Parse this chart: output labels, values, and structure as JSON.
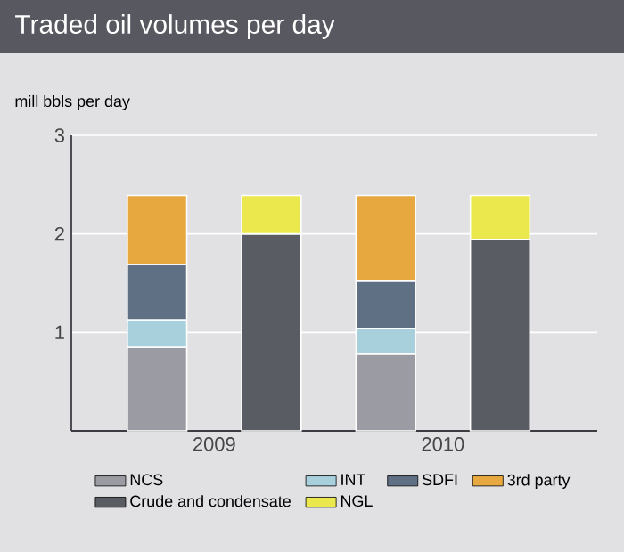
{
  "chart_data": {
    "type": "bar",
    "stacked": true,
    "title": "Traded oil volumes per day",
    "ylabel": "mill bbls per day",
    "categories": [
      "2009",
      null,
      "2010",
      null
    ],
    "series": [
      {
        "name": "NCS",
        "color": "#9b9ba3",
        "values": [
          0.85,
          null,
          0.78,
          null
        ]
      },
      {
        "name": "INT",
        "color": "#a7d0dc",
        "values": [
          0.28,
          null,
          0.26,
          null
        ]
      },
      {
        "name": "SDFI",
        "color": "#5f6f84",
        "values": [
          0.56,
          null,
          0.48,
          null
        ]
      },
      {
        "name": "3rd party",
        "color": "#e7a83f",
        "values": [
          0.7,
          null,
          0.87,
          null
        ]
      },
      {
        "name": "Crude and condensate",
        "color": "#5a5c64",
        "values": [
          null,
          2.0,
          null,
          1.94
        ]
      },
      {
        "name": "NGL",
        "color": "#ebe84e",
        "values": [
          null,
          0.39,
          null,
          0.45
        ]
      }
    ],
    "ylim": [
      0,
      3
    ],
    "yticks": [
      1,
      2,
      3
    ],
    "grid": "y",
    "legend": "bottom"
  }
}
